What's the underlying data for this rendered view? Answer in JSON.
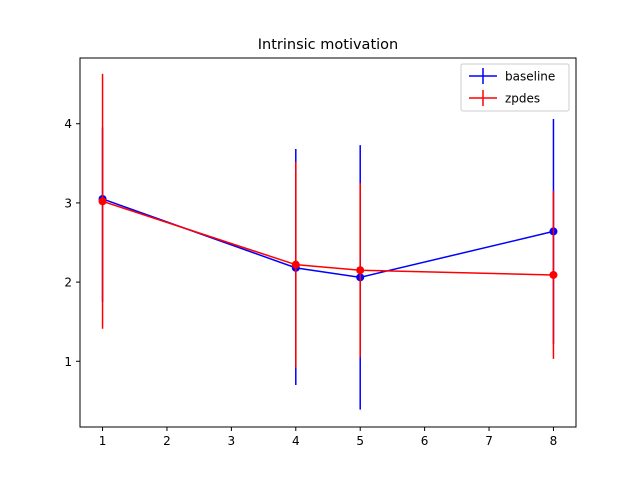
{
  "chart_data": {
    "type": "line",
    "title": "Intrinsic motivation",
    "xlabel": "",
    "ylabel": "",
    "xlim": [
      0.65,
      8.35
    ],
    "ylim": [
      0.17,
      4.83
    ],
    "xticks": [
      1,
      2,
      3,
      4,
      5,
      6,
      7,
      8
    ],
    "yticks": [
      1,
      2,
      3,
      4
    ],
    "grid": false,
    "legend_position": "top-right",
    "series": [
      {
        "name": "baseline",
        "color": "#0000ff",
        "points": [
          {
            "x": 1,
            "y": 3.05,
            "err_low": 1.75,
            "err_high": 3.95
          },
          {
            "x": 4,
            "y": 2.18,
            "err_low": 0.7,
            "err_high": 3.68
          },
          {
            "x": 5,
            "y": 2.06,
            "err_low": 0.39,
            "err_high": 3.73
          },
          {
            "x": 8,
            "y": 2.64,
            "err_low": 1.22,
            "err_high": 4.06
          }
        ]
      },
      {
        "name": "zpdes",
        "color": "#ff0000",
        "points": [
          {
            "x": 1,
            "y": 3.02,
            "err_low": 1.41,
            "err_high": 4.63
          },
          {
            "x": 4,
            "y": 2.22,
            "err_low": 0.92,
            "err_high": 3.52
          },
          {
            "x": 5,
            "y": 2.15,
            "err_low": 1.05,
            "err_high": 3.25
          },
          {
            "x": 8,
            "y": 2.09,
            "err_low": 1.03,
            "err_high": 3.15
          }
        ]
      }
    ]
  }
}
